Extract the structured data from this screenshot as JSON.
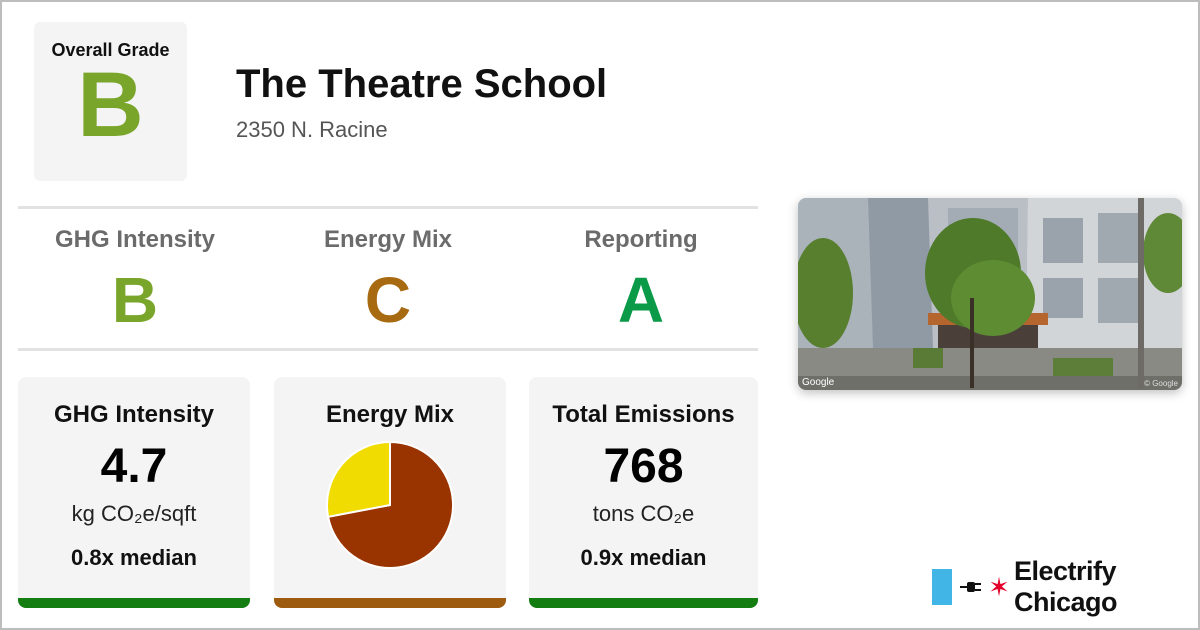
{
  "overall": {
    "label": "Overall Grade",
    "grade": "B"
  },
  "building": {
    "name": "The Theatre School",
    "address": "2350 N. Racine"
  },
  "subgrades": [
    {
      "label": "GHG Intensity",
      "grade": "B",
      "color": "#7aa52b"
    },
    {
      "label": "Energy Mix",
      "grade": "C",
      "color": "#a86a10"
    },
    {
      "label": "Reporting",
      "grade": "A",
      "color": "#0b9a47"
    }
  ],
  "cards": {
    "ghg": {
      "title": "GHG Intensity",
      "value": "4.7",
      "unit": "kg CO₂e/sqft",
      "median": "0.8x median",
      "bar_color": "#137d11"
    },
    "mix": {
      "title": "Energy Mix",
      "bar_color": "#9c5b0f"
    },
    "emissions": {
      "title": "Total Emissions",
      "value": "768",
      "unit": "tons CO₂e",
      "median": "0.9x median",
      "bar_color": "#137d11"
    }
  },
  "energy_mix_pie": {
    "slices": [
      {
        "share": 0.72,
        "color": "#993300"
      },
      {
        "share": 0.28,
        "color": "#f0dc00"
      }
    ]
  },
  "photo": {
    "google_tag": "Google",
    "copyright": "© Google"
  },
  "brand": {
    "name": "Electrify Chicago",
    "star": "✶",
    "plug_icon": "plug-icon"
  }
}
